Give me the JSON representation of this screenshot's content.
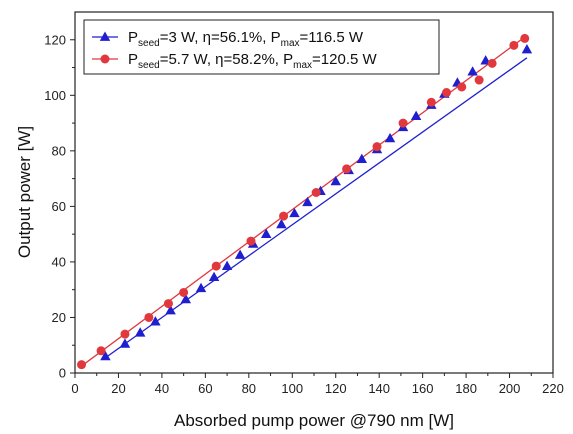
{
  "chart_data": {
    "type": "scatter",
    "xlabel": "Absorbed pump power @790 nm [W]",
    "ylabel": "Output power [W]",
    "xlim": [
      0,
      220
    ],
    "ylim": [
      0,
      130
    ],
    "x_ticks": [
      0,
      20,
      40,
      60,
      80,
      100,
      120,
      140,
      160,
      180,
      200,
      220
    ],
    "y_ticks": [
      0,
      20,
      40,
      60,
      80,
      100,
      120
    ],
    "grid": false,
    "legend_position": "top-left",
    "series": [
      {
        "name": "Pseed=3 W, η=56.1%, Pmax=116.5 W",
        "legend": {
          "p1": "P",
          "s1": "seed",
          "t1": "=3 W, η=56.1%, P",
          "s2": "max",
          "t2": "=116.5 W"
        },
        "color": "#1f1fd0",
        "marker": "triangle",
        "points": [
          [
            14,
            6
          ],
          [
            23,
            10.5
          ],
          [
            30,
            14.5
          ],
          [
            37,
            18.5
          ],
          [
            44,
            22.5
          ],
          [
            51,
            26.5
          ],
          [
            58,
            30.5
          ],
          [
            64,
            34.5
          ],
          [
            70,
            38.5
          ],
          [
            76,
            42.5
          ],
          [
            82,
            46.5
          ],
          [
            88,
            50
          ],
          [
            95,
            53.5
          ],
          [
            101,
            57.5
          ],
          [
            107,
            61.5
          ],
          [
            113,
            65.5
          ],
          [
            120,
            69
          ],
          [
            126,
            73
          ],
          [
            132,
            77
          ],
          [
            139,
            80.5
          ],
          [
            145,
            84.5
          ],
          [
            151,
            88.5
          ],
          [
            157,
            92.5
          ],
          [
            164,
            96.5
          ],
          [
            170,
            100.5
          ],
          [
            176,
            104.5
          ],
          [
            183,
            108.5
          ],
          [
            189,
            112.5
          ],
          [
            208,
            116.5
          ]
        ],
        "fit": [
          [
            14,
            5.5
          ],
          [
            208,
            113.5
          ]
        ]
      },
      {
        "name": "Pseed=5.7 W, η=58.2%, Pmax=120.5 W",
        "legend": {
          "p1": "P",
          "s1": "seed",
          "t1": "=5.7 W, η=58.2%, P",
          "s2": "max",
          "t2": "=120.5 W"
        },
        "color": "#e0383c",
        "marker": "circle",
        "points": [
          [
            3,
            3
          ],
          [
            12,
            8
          ],
          [
            23,
            14
          ],
          [
            34,
            20
          ],
          [
            43,
            25
          ],
          [
            50,
            29
          ],
          [
            65,
            38.5
          ],
          [
            81,
            47.5
          ],
          [
            96,
            56.5
          ],
          [
            111,
            65
          ],
          [
            125,
            73.5
          ],
          [
            139,
            81.5
          ],
          [
            151,
            90
          ],
          [
            164,
            97.5
          ],
          [
            171,
            101
          ],
          [
            178,
            103
          ],
          [
            186,
            105.5
          ],
          [
            192,
            111.5
          ],
          [
            202,
            118
          ],
          [
            207,
            120.5
          ]
        ],
        "fit": [
          [
            3,
            2.5
          ],
          [
            207,
            121
          ]
        ]
      }
    ]
  }
}
